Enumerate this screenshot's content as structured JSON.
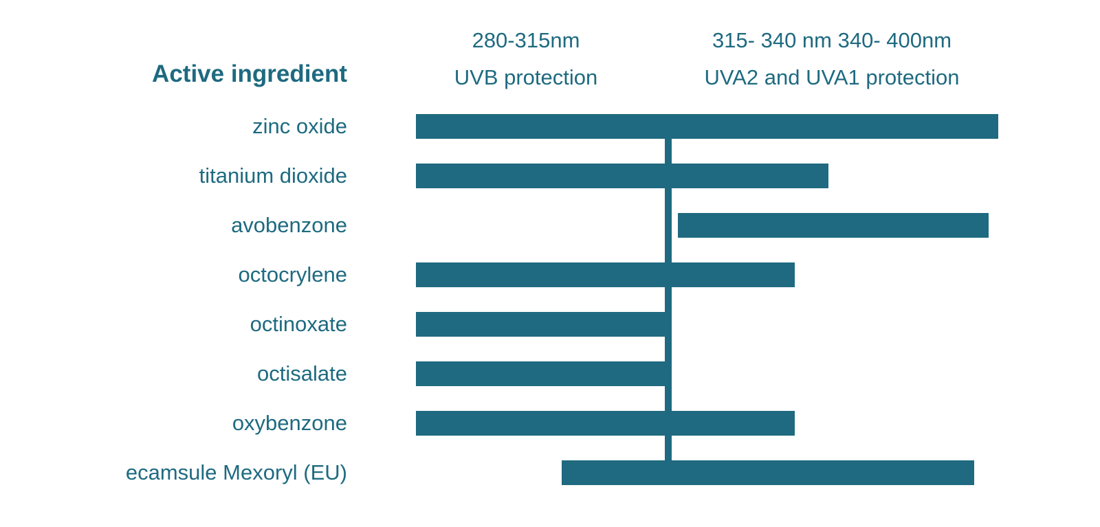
{
  "page": {
    "background": "#ffffff"
  },
  "chart_data": {
    "type": "bar",
    "orientation": "horizontal-range",
    "title": "",
    "row_header": "Active ingredient",
    "column_headers": [
      {
        "line1": "280-315nm",
        "line2": "UVB protection"
      },
      {
        "line1": "315- 340 nm 340- 400nm",
        "line2": "UVA2 and UVA1 protection"
      }
    ],
    "x_axis": {
      "unit": "nm",
      "min": 280,
      "max": 400
    },
    "categories": [
      "zinc oxide",
      "titanium dioxide",
      "avobenzone",
      "octocrylene",
      "octinoxate",
      "octisalate",
      "oxybenzone",
      "ecamsule Mexoryl (EU)"
    ],
    "ranges_nm": [
      [
        280,
        400
      ],
      [
        280,
        365
      ],
      [
        334,
        398
      ],
      [
        280,
        358
      ],
      [
        280,
        332
      ],
      [
        280,
        332
      ],
      [
        280,
        358
      ],
      [
        310,
        395
      ]
    ],
    "divider_nm": 332,
    "bar_color": "#1f6a80",
    "text_color": "#1e6a80",
    "grid": false,
    "legend": false
  }
}
